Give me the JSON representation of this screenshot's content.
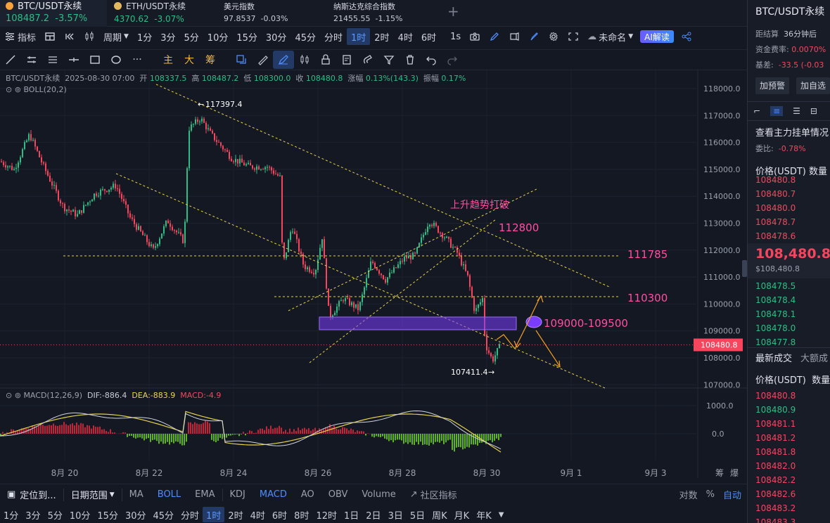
{
  "tickers": [
    {
      "name": "BTC/USDT永续",
      "price": "108487.2",
      "change": "-3.57%"
    },
    {
      "name": "ETH/USDT永续",
      "price": "4370.62",
      "change": "-3.07%"
    },
    {
      "name": "美元指数",
      "price": "97.8537",
      "change": "-0.03%"
    },
    {
      "name": "纳斯达克综合指数",
      "price": "21455.55",
      "change": "-1.15%"
    }
  ],
  "toolbar": {
    "indicators": "指标",
    "period": "周期",
    "timeframes": [
      "1分",
      "3分",
      "5分",
      "10分",
      "15分",
      "30分",
      "45分",
      "分时",
      "1时",
      "2时",
      "4时",
      "6时"
    ],
    "selected_timeframe": "1时",
    "seconds": "1s",
    "layout_name": "未命名",
    "ai_button": "AI解读"
  },
  "drawbar": {
    "cn_tools": [
      "主",
      "大",
      "筹"
    ]
  },
  "chart": {
    "ohlc": {
      "symbol": "BTC/USDT永续",
      "time": "2025-08-30 07:00",
      "open_label": "开",
      "open": "108337.5",
      "high_label": "高",
      "high": "108487.2",
      "low_label": "低",
      "low": "108300.0",
      "close_label": "收",
      "close": "108480.8",
      "chg_label": "涨幅",
      "chg": "0.13%(143.3)",
      "amp_label": "振幅",
      "amp": "0.17%"
    },
    "boll": "BOLL(20,2)",
    "macd": {
      "name": "MACD(12,26,9)",
      "dif": "DIF:-886.4",
      "dea": "DEA:-883.9",
      "macd": "MACD:-4.9"
    },
    "price_axis": [
      "118000.0",
      "117000.0",
      "116000.0",
      "115000.0",
      "114000.0",
      "113000.0",
      "112000.0",
      "111000.0",
      "110000.0",
      "109000.0",
      "108000.0",
      "107000.0"
    ],
    "macd_axis": [
      "1000.0",
      "0.0"
    ],
    "last_price": "108480.8",
    "date_axis": [
      "8月 20",
      "8月 22",
      "8月 24",
      "8月 26",
      "8月 28",
      "8月 30",
      "9月 1",
      "9月 3"
    ],
    "corner_labels": [
      "筹",
      "爆"
    ],
    "annotations": {
      "high_mark": "117397.4",
      "low_mark": "107411.4",
      "breakout_text": "上升趋势打破",
      "level_112800": "112800",
      "level_111785": "111785",
      "level_110300": "110300",
      "zone_label": "109000-109500"
    },
    "colors": {
      "up": "#2ebd85",
      "down": "#f6465d",
      "trendline": "#e6d34a",
      "zone": "#7a3cff",
      "annotation": "#ff4fa3",
      "arrow": "#f2a01f"
    }
  },
  "bottom_bar1": {
    "locate": "定位到...",
    "date_range": "日期范围",
    "indicators": [
      "MA",
      "BOLL",
      "EMA",
      "KDJ",
      "MACD",
      "AO",
      "OBV",
      "Volume"
    ],
    "active_indicators": [
      "BOLL",
      "MACD"
    ],
    "community": "社区指标",
    "log": "对数",
    "percent": "%",
    "auto": "自动"
  },
  "bottom_bar2": {
    "timeframes": [
      "1分",
      "3分",
      "5分",
      "10分",
      "15分",
      "30分",
      "45分",
      "分时",
      "1时",
      "2时",
      "4时",
      "6时",
      "8时",
      "12时",
      "1日",
      "2日",
      "3日",
      "5日",
      "周K",
      "月K",
      "年K"
    ],
    "selected": "1时"
  },
  "right_panel": {
    "title": "BTC/USDT永续",
    "settle_label": "距结算",
    "settle_value": "36分钟后",
    "funding_label": "资金费率:",
    "funding_value": "0.0070%",
    "basis_label": "基差:",
    "basis_value": "-33.5 (-0.03",
    "add_alert": "加预警",
    "add_fav": "加自选",
    "main_orders": "查看主力挂单情况",
    "ratio_label": "委比:",
    "ratio_value": "-0.78%",
    "ob_header_price": "价格(USDT)",
    "ob_header_qty": "数量",
    "asks": [
      "108480.8",
      "108480.7",
      "108480.0",
      "108478.7",
      "108478.6"
    ],
    "mid_price": "108,480.8",
    "mid_sub": "$108,480.8",
    "bids": [
      "108478.5",
      "108478.4",
      "108478.1",
      "108478.0",
      "108477.8"
    ],
    "trades_tab": "最新成交",
    "big_tab": "大额成",
    "trades_header_price": "价格(USDT)",
    "trades_header_qty": "数量",
    "trades": [
      {
        "price": "108480.8",
        "side": "sell"
      },
      {
        "price": "108480.9",
        "side": "buy"
      },
      {
        "price": "108481.1",
        "side": "sell"
      },
      {
        "price": "108481.2",
        "side": "sell"
      },
      {
        "price": "108481.8",
        "side": "sell"
      },
      {
        "price": "108482.0",
        "side": "sell"
      },
      {
        "price": "108482.2",
        "side": "sell"
      },
      {
        "price": "108482.6",
        "side": "sell"
      },
      {
        "price": "108483.2",
        "side": "sell"
      },
      {
        "price": "108483.3",
        "side": "sell"
      }
    ]
  }
}
